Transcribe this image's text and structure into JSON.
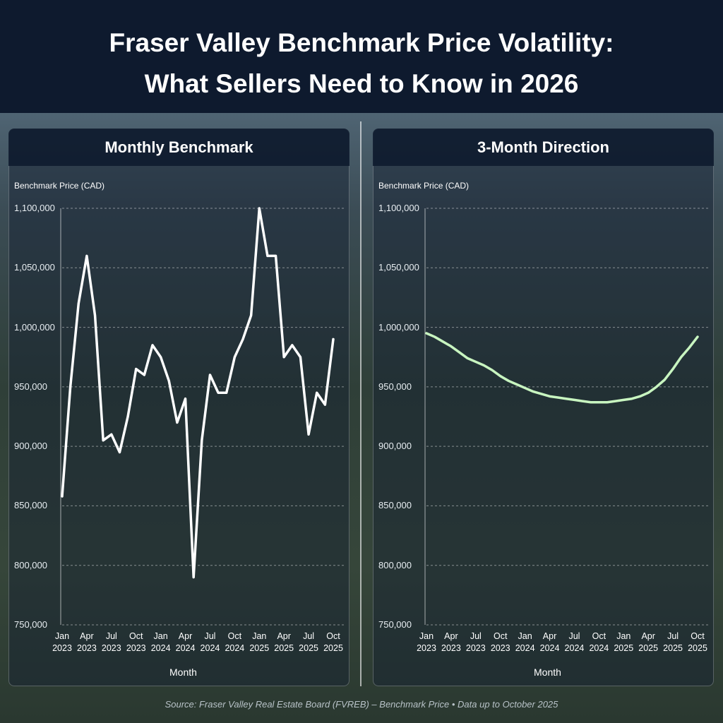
{
  "title": [
    "Fraser Valley Benchmark Price Volatility:",
    "What Sellers Need to Know in 2026"
  ],
  "source": "Source: Fraser Valley Real Estate Board (FVREB) – Benchmark Price • Data up to October 2025",
  "chart_data": [
    {
      "type": "line",
      "title": "Monthly Benchmark",
      "y_label": "Benchmark Price (CAD)",
      "x_label": "Month",
      "categories": [
        "Jan 2023",
        null,
        null,
        "Apr 2023",
        null,
        null,
        "Jul 2023",
        null,
        null,
        "Oct 2023",
        null,
        null,
        "Jan 2024",
        null,
        null,
        "Apr 2024",
        null,
        null,
        "Jul 2024",
        null,
        null,
        "Oct 2024",
        null,
        null,
        "Jan 2025",
        null,
        null,
        "Apr 2025",
        null,
        null,
        "Jul 2025",
        null,
        null,
        "Oct 2025"
      ],
      "values": [
        858000,
        950000,
        1020000,
        1060000,
        1010000,
        905000,
        910000,
        895000,
        925000,
        965000,
        960000,
        985000,
        975000,
        955000,
        920000,
        940000,
        790000,
        905000,
        960000,
        945000,
        945000,
        975000,
        990000,
        1010000,
        1100000,
        1060000,
        1060000,
        975000,
        985000,
        975000,
        910000,
        945000,
        935000,
        990000
      ],
      "color": "#ffffff",
      "ylim": [
        750000,
        1100000
      ],
      "yticks": [
        {
          "value": 750000,
          "label": "750,000"
        },
        {
          "value": 800000,
          "label": "800,000"
        },
        {
          "value": 850000,
          "label": "850,000"
        },
        {
          "value": 900000,
          "label": "900,000"
        },
        {
          "value": 950000,
          "label": "950,000"
        },
        {
          "value": 1000000,
          "label": "1,000,000"
        },
        {
          "value": 1050000,
          "label": "1,050,000"
        },
        {
          "value": 1100000,
          "label": "1,100,000"
        }
      ],
      "grid": true
    },
    {
      "type": "line",
      "title": "3-Month Direction",
      "y_label": "Benchmark Price (CAD)",
      "x_label": "Month",
      "categories": [
        "Jan 2023",
        null,
        null,
        "Apr 2023",
        null,
        null,
        "Jul 2023",
        null,
        null,
        "Oct 2023",
        null,
        null,
        "Jan 2024",
        null,
        null,
        "Apr 2024",
        null,
        null,
        "Jul 2024",
        null,
        null,
        "Oct 2024",
        null,
        null,
        "Jan 2025",
        null,
        null,
        "Apr 2025",
        null,
        null,
        "Jul 2025",
        null,
        null,
        "Oct 2025"
      ],
      "values": [
        995000,
        992000,
        988000,
        984000,
        979000,
        974000,
        971000,
        968000,
        964000,
        959000,
        955000,
        952000,
        949000,
        946000,
        944000,
        942000,
        941000,
        940000,
        939000,
        938000,
        937000,
        937000,
        937000,
        938000,
        939000,
        940000,
        942000,
        945000,
        950000,
        956000,
        965000,
        975000,
        983000,
        992000
      ],
      "color": "#c8f5c0",
      "ylim": [
        750000,
        1100000
      ],
      "yticks": [
        {
          "value": 750000,
          "label": "750,000"
        },
        {
          "value": 800000,
          "label": "800,000"
        },
        {
          "value": 850000,
          "label": "850,000"
        },
        {
          "value": 900000,
          "label": "900,000"
        },
        {
          "value": 950000,
          "label": "950,000"
        },
        {
          "value": 1000000,
          "label": "1,000,000"
        },
        {
          "value": 1050000,
          "label": "1,050,000"
        },
        {
          "value": 1100000,
          "label": "1,100,000"
        }
      ],
      "grid": true
    }
  ]
}
